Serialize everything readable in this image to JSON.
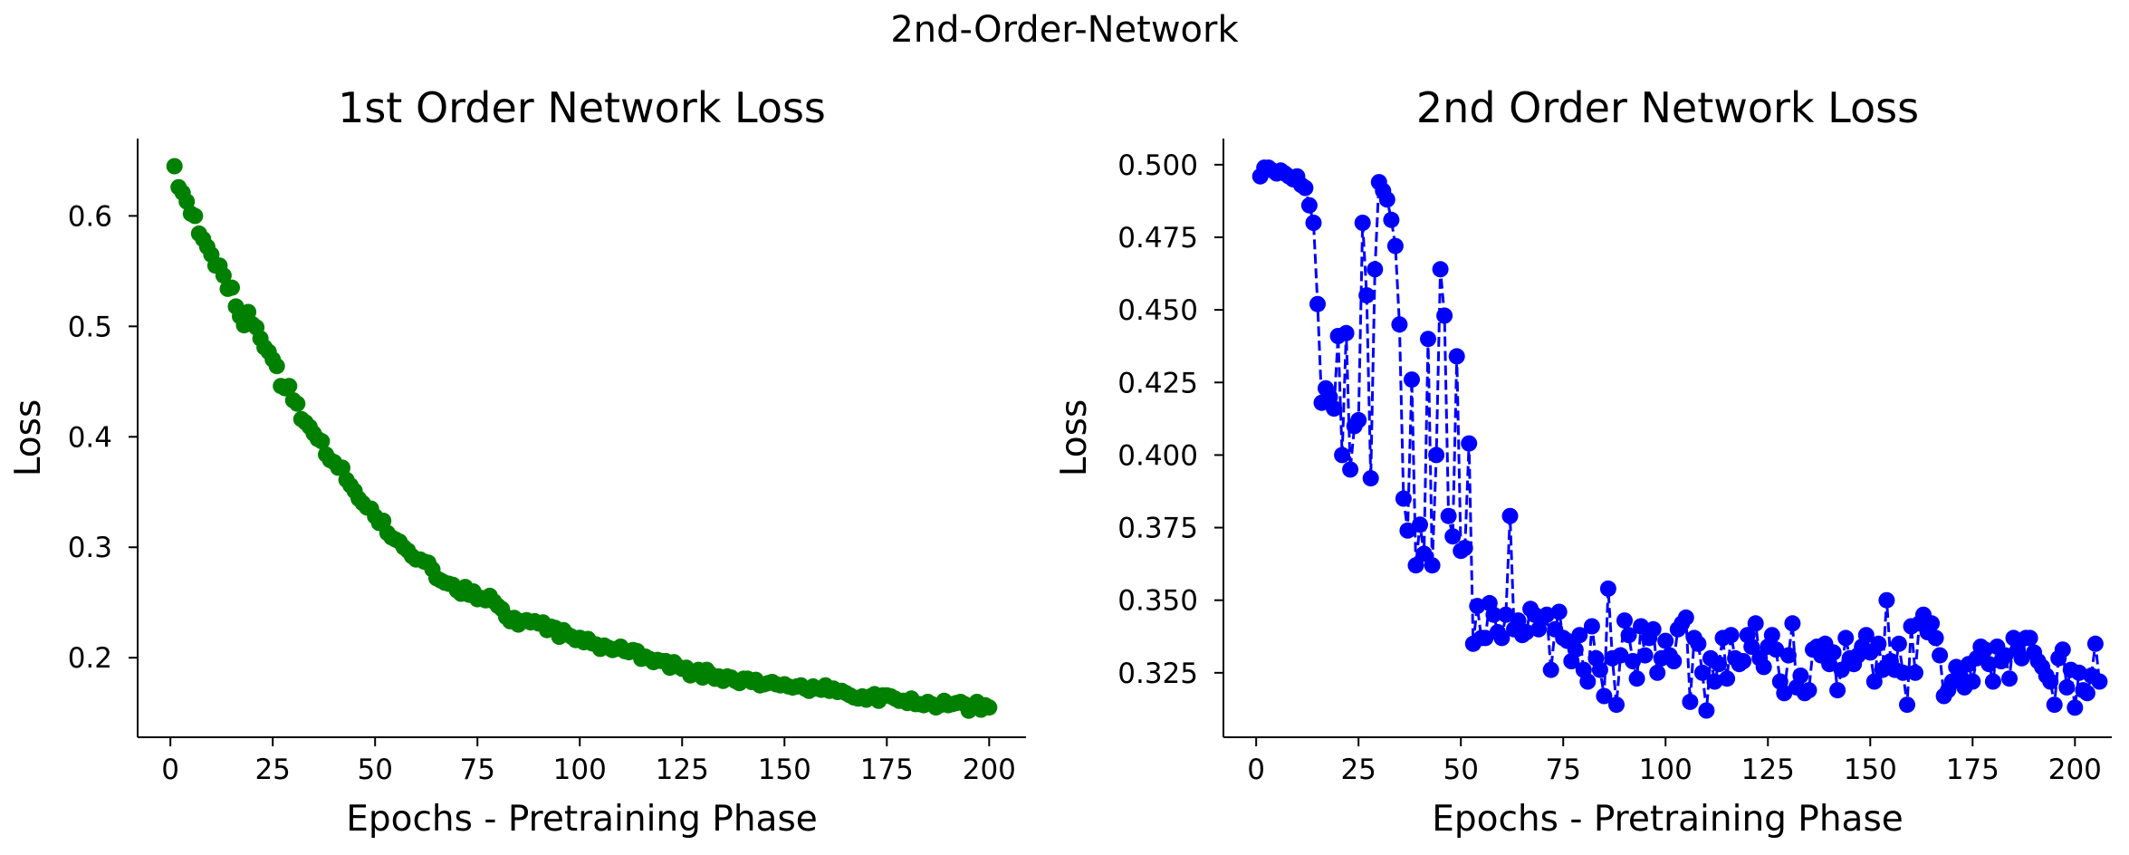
{
  "figure": {
    "title": "2nd-Order-Network"
  },
  "chart_data": [
    {
      "type": "scatter",
      "title": "1st Order Network Loss",
      "xlabel": "Epochs - Pretraining Phase",
      "ylabel": "Loss",
      "xlim": [
        -8,
        209
      ],
      "ylim": [
        0.128,
        0.67
      ],
      "xticks": [
        "0",
        "25",
        "50",
        "75",
        "100",
        "125",
        "150",
        "175",
        "200"
      ],
      "xtick_values": [
        0,
        25,
        50,
        75,
        100,
        125,
        150,
        175,
        200
      ],
      "yticks": [
        "0.2",
        "0.3",
        "0.4",
        "0.5",
        "0.6"
      ],
      "ytick_values": [
        0.2,
        0.3,
        0.4,
        0.5,
        0.6
      ],
      "color": "#008000",
      "linestyle": "none",
      "grid": false,
      "legend": "none",
      "x_start": 1,
      "y": [
        0.645,
        0.626,
        0.621,
        0.613,
        0.602,
        0.6,
        0.584,
        0.579,
        0.572,
        0.565,
        0.555,
        0.555,
        0.546,
        0.534,
        0.535,
        0.518,
        0.509,
        0.501,
        0.513,
        0.502,
        0.499,
        0.489,
        0.481,
        0.477,
        0.47,
        0.464,
        0.446,
        0.444,
        0.446,
        0.433,
        0.43,
        0.416,
        0.413,
        0.409,
        0.403,
        0.398,
        0.396,
        0.384,
        0.379,
        0.377,
        0.372,
        0.372,
        0.361,
        0.356,
        0.351,
        0.344,
        0.34,
        0.336,
        0.335,
        0.328,
        0.322,
        0.324,
        0.313,
        0.309,
        0.307,
        0.305,
        0.3,
        0.297,
        0.292,
        0.289,
        0.289,
        0.287,
        0.286,
        0.28,
        0.272,
        0.27,
        0.268,
        0.267,
        0.266,
        0.261,
        0.258,
        0.264,
        0.257,
        0.26,
        0.253,
        0.254,
        0.252,
        0.256,
        0.251,
        0.247,
        0.244,
        0.237,
        0.233,
        0.236,
        0.23,
        0.233,
        0.234,
        0.232,
        0.233,
        0.231,
        0.232,
        0.225,
        0.228,
        0.227,
        0.219,
        0.225,
        0.221,
        0.219,
        0.216,
        0.218,
        0.214,
        0.217,
        0.213,
        0.212,
        0.208,
        0.211,
        0.209,
        0.207,
        0.208,
        0.21,
        0.206,
        0.205,
        0.207,
        0.206,
        0.199,
        0.201,
        0.199,
        0.196,
        0.198,
        0.197,
        0.197,
        0.191,
        0.196,
        0.192,
        0.19,
        0.191,
        0.184,
        0.186,
        0.189,
        0.182,
        0.189,
        0.185,
        0.181,
        0.183,
        0.179,
        0.183,
        0.182,
        0.179,
        0.177,
        0.181,
        0.181,
        0.178,
        0.18,
        0.175,
        0.176,
        0.177,
        0.178,
        0.176,
        0.175,
        0.176,
        0.174,
        0.173,
        0.174,
        0.175,
        0.172,
        0.17,
        0.174,
        0.172,
        0.171,
        0.175,
        0.17,
        0.172,
        0.169,
        0.17,
        0.168,
        0.166,
        0.164,
        0.163,
        0.165,
        0.162,
        0.165,
        0.167,
        0.161,
        0.166,
        0.166,
        0.165,
        0.163,
        0.161,
        0.161,
        0.159,
        0.163,
        0.158,
        0.158,
        0.157,
        0.16,
        0.158,
        0.155,
        0.157,
        0.161,
        0.157,
        0.158,
        0.159,
        0.16,
        0.158,
        0.152,
        0.156,
        0.16,
        0.153,
        0.157,
        0.155
      ]
    },
    {
      "type": "line",
      "title": "2nd Order Network Loss",
      "xlabel": "Epochs - Pretraining Phase",
      "ylabel": "Loss",
      "xlim": [
        -8,
        209
      ],
      "ylim": [
        0.3028,
        0.509
      ],
      "xticks": [
        "0",
        "25",
        "50",
        "75",
        "100",
        "125",
        "150",
        "175",
        "200"
      ],
      "xtick_values": [
        0,
        25,
        50,
        75,
        100,
        125,
        150,
        175,
        200
      ],
      "yticks": [
        "0.325",
        "0.350",
        "0.375",
        "0.400",
        "0.425",
        "0.450",
        "0.475",
        "0.500"
      ],
      "ytick_values": [
        0.325,
        0.35,
        0.375,
        0.4,
        0.425,
        0.45,
        0.475,
        0.5
      ],
      "color": "#0000ff",
      "linestyle": "dashed",
      "marker": "circle",
      "grid": false,
      "legend": "none",
      "x_start": 1,
      "y": [
        0.496,
        0.499,
        0.499,
        0.498,
        0.497,
        0.498,
        0.497,
        0.496,
        0.495,
        0.496,
        0.493,
        0.492,
        0.486,
        0.48,
        0.452,
        0.418,
        0.423,
        0.42,
        0.416,
        0.441,
        0.4,
        0.442,
        0.395,
        0.41,
        0.412,
        0.48,
        0.455,
        0.392,
        0.464,
        0.494,
        0.491,
        0.488,
        0.481,
        0.472,
        0.445,
        0.385,
        0.374,
        0.426,
        0.362,
        0.376,
        0.366,
        0.44,
        0.362,
        0.4,
        0.464,
        0.448,
        0.379,
        0.372,
        0.434,
        0.367,
        0.368,
        0.404,
        0.335,
        0.348,
        0.337,
        0.337,
        0.349,
        0.345,
        0.339,
        0.337,
        0.345,
        0.379,
        0.34,
        0.343,
        0.338,
        0.339,
        0.347,
        0.345,
        0.34,
        0.344,
        0.345,
        0.326,
        0.34,
        0.346,
        0.337,
        0.336,
        0.329,
        0.333,
        0.338,
        0.326,
        0.322,
        0.341,
        0.33,
        0.326,
        0.317,
        0.354,
        0.33,
        0.314,
        0.331,
        0.343,
        0.338,
        0.329,
        0.323,
        0.341,
        0.331,
        0.337,
        0.34,
        0.325,
        0.33,
        0.336,
        0.331,
        0.329,
        0.34,
        0.342,
        0.344,
        0.315,
        0.337,
        0.335,
        0.325,
        0.312,
        0.33,
        0.322,
        0.328,
        0.337,
        0.323,
        0.338,
        0.33,
        0.328,
        0.329,
        0.338,
        0.334,
        0.342,
        0.33,
        0.327,
        0.334,
        0.338,
        0.333,
        0.322,
        0.318,
        0.331,
        0.342,
        0.32,
        0.324,
        0.318,
        0.319,
        0.333,
        0.334,
        0.331,
        0.335,
        0.328,
        0.332,
        0.319,
        0.326,
        0.337,
        0.33,
        0.328,
        0.331,
        0.334,
        0.338,
        0.332,
        0.322,
        0.335,
        0.326,
        0.35,
        0.329,
        0.326,
        0.335,
        0.325,
        0.314,
        0.341,
        0.325,
        0.342,
        0.345,
        0.339,
        0.342,
        0.337,
        0.331,
        0.317,
        0.319,
        0.322,
        0.327,
        0.324,
        0.32,
        0.328,
        0.322,
        0.33,
        0.334,
        0.333,
        0.328,
        0.322,
        0.334,
        0.329,
        0.331,
        0.323,
        0.337,
        0.333,
        0.33,
        0.337,
        0.337,
        0.332,
        0.329,
        0.327,
        0.324,
        0.322,
        0.314,
        0.33,
        0.333,
        0.32,
        0.326,
        0.313,
        0.325,
        0.319,
        0.318,
        0.324,
        0.335,
        0.322
      ]
    }
  ]
}
